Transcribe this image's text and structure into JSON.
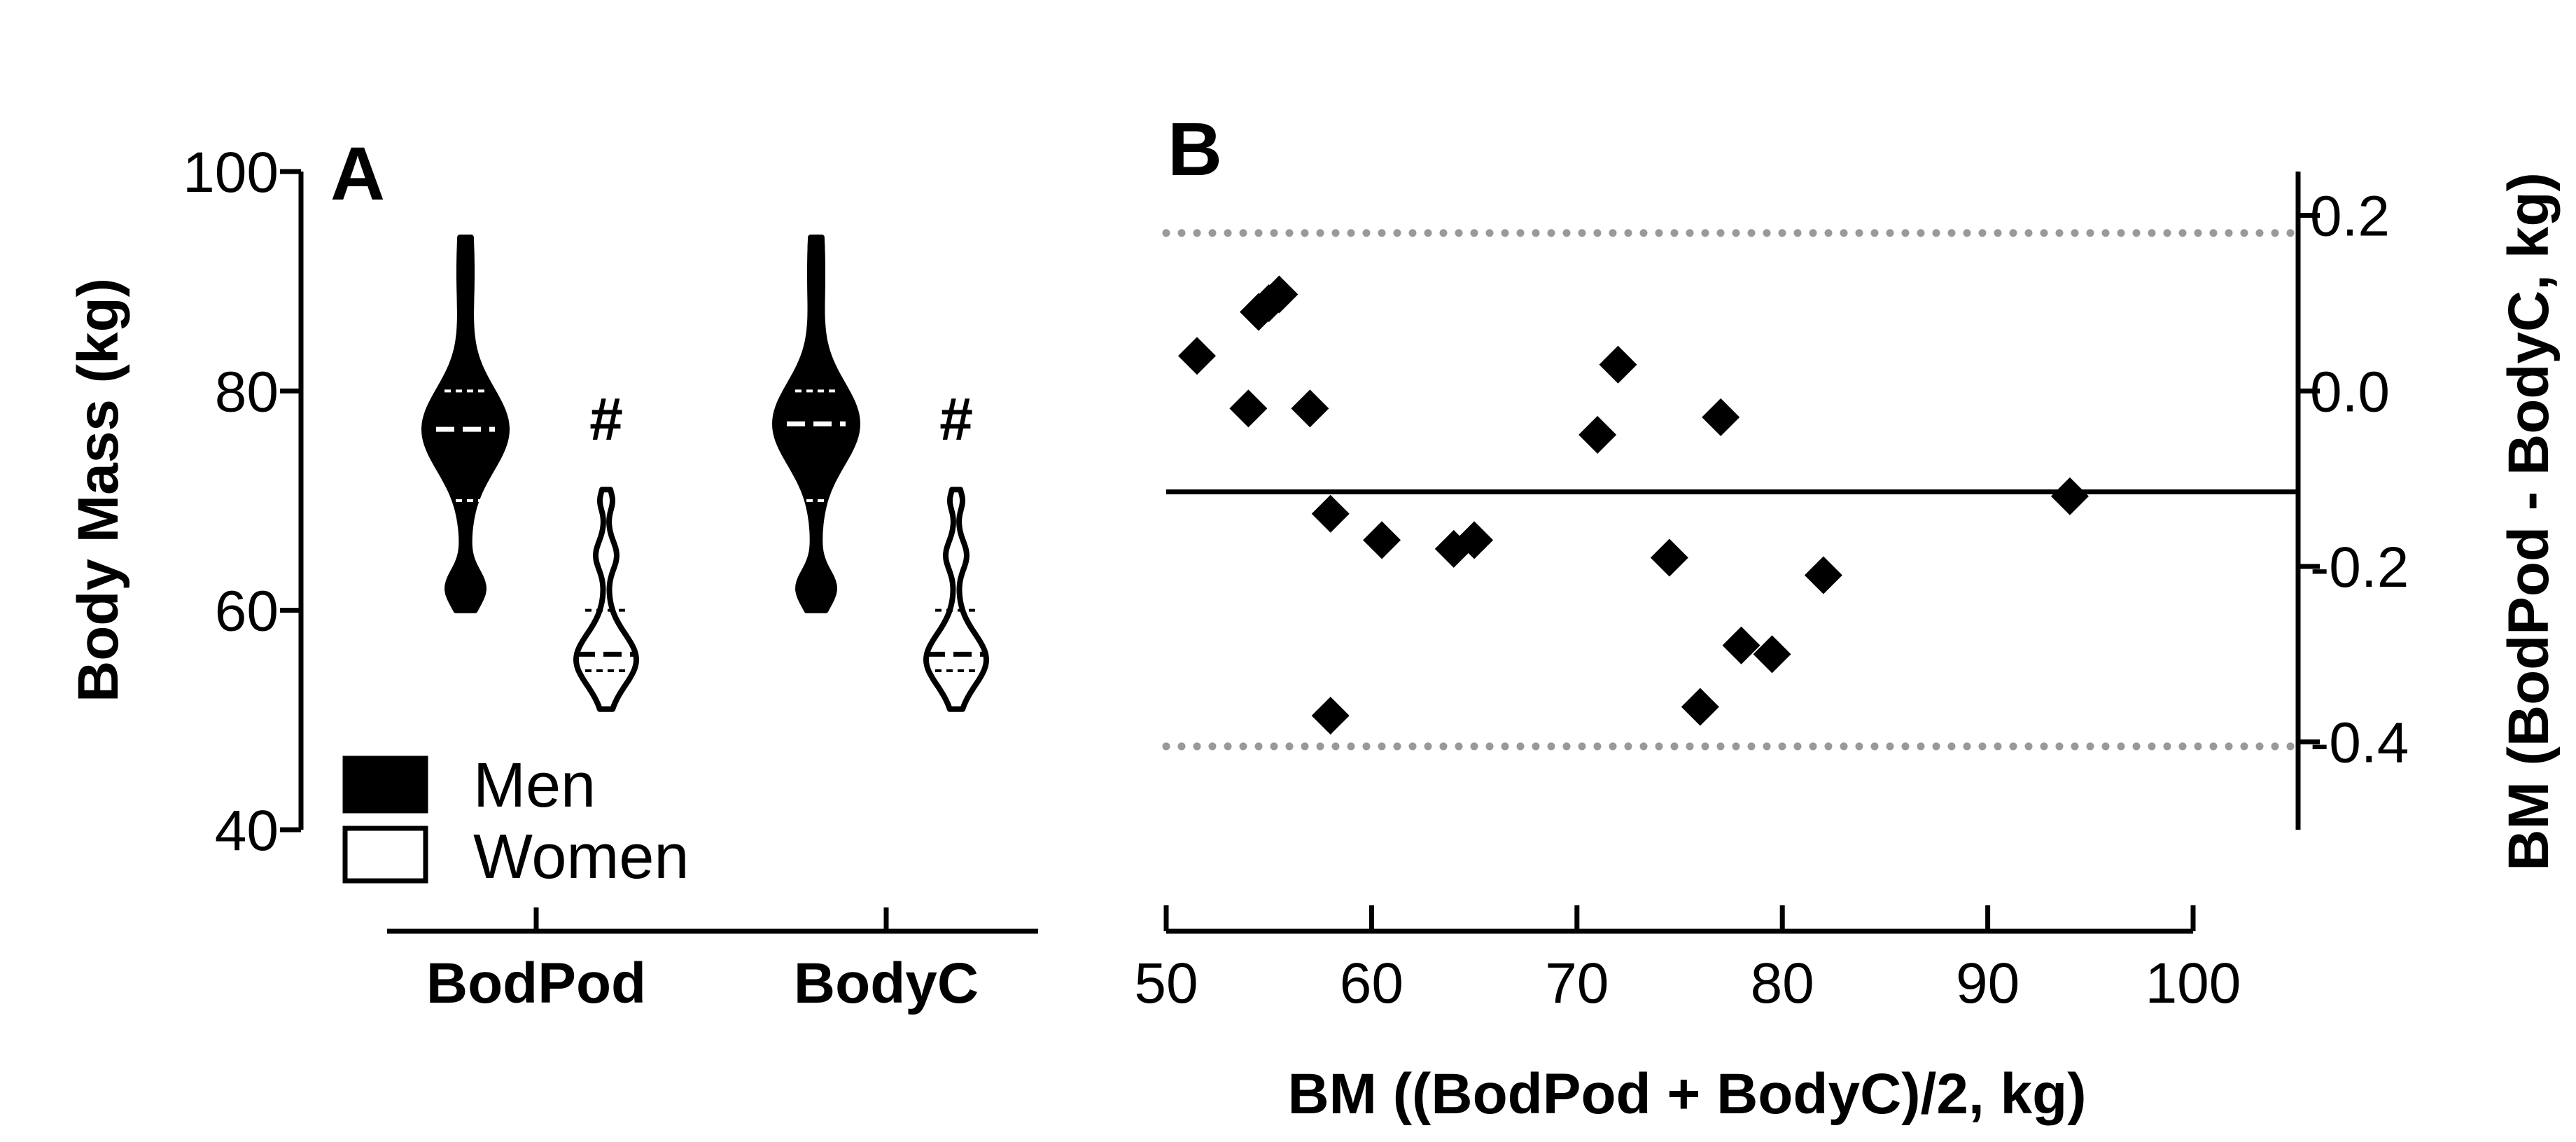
{
  "chart_data": [
    {
      "panel": "A",
      "type": "violin",
      "ylabel": "Body Mass (kg)",
      "ylim": [
        40,
        100
      ],
      "yticks": [
        "40",
        "60",
        "80",
        "100"
      ],
      "categories": [
        "BodPod",
        "BodyC"
      ],
      "legend": {
        "placement": "bottom-left",
        "entries": [
          "Men",
          "Women"
        ]
      },
      "series": [
        {
          "name": "Men",
          "fill": "filled",
          "min": [
            60,
            60
          ],
          "max": [
            94,
            94
          ],
          "median": [
            76.5,
            77
          ],
          "quartiles": [
            [
              70,
              80
            ],
            [
              70,
              80
            ]
          ]
        },
        {
          "name": "Women",
          "fill": "open",
          "min": [
            51,
            51
          ],
          "max": [
            71,
            71
          ],
          "median": [
            56,
            56
          ],
          "quartiles": [
            [
              54.5,
              60
            ],
            [
              54.5,
              60
            ]
          ]
        }
      ],
      "significance": {
        "symbol": "#",
        "on": "Women"
      }
    },
    {
      "panel": "B",
      "type": "scatter",
      "xlabel": "BM ((BodPod + BodyC)/2, kg)",
      "ylabel": "BM (BodPod - BodyC, kg)",
      "yaxis_side": "right",
      "xlim": [
        50,
        100
      ],
      "ylim": [
        -0.5,
        0.25
      ],
      "xticks": [
        "50",
        "60",
        "70",
        "80",
        "90",
        "100"
      ],
      "yticks": [
        "0.2",
        "0.0",
        "-0.2",
        "-0.4"
      ],
      "x": [
        51.5,
        54,
        54.5,
        55,
        55.5,
        57,
        58,
        58,
        60.5,
        64,
        65,
        71,
        72,
        74.5,
        76,
        77,
        78,
        79.5,
        82,
        94
      ],
      "y": [
        0.04,
        -0.02,
        0.09,
        0.1,
        0.11,
        -0.02,
        -0.14,
        -0.37,
        -0.17,
        -0.18,
        -0.17,
        -0.05,
        0.03,
        -0.19,
        -0.36,
        -0.03,
        -0.29,
        -0.3,
        -0.21,
        -0.12
      ],
      "reference_lines": [
        {
          "kind": "mean bias",
          "value": -0.115,
          "style": "solid"
        },
        {
          "kind": "upper limit of agreement",
          "value": 0.18,
          "style": "dotted",
          "color": "#999999"
        },
        {
          "kind": "lower limit of agreement",
          "value": -0.405,
          "style": "dotted",
          "color": "#999999"
        }
      ],
      "grid": false
    }
  ]
}
